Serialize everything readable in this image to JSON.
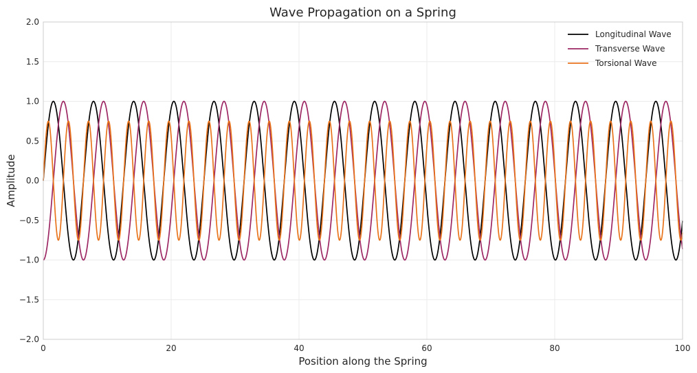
{
  "chart_data": {
    "type": "line",
    "title": "Wave Propagation on a Spring",
    "xlabel": "Position along the Spring",
    "ylabel": "Amplitude",
    "xlim": [
      0,
      100
    ],
    "ylim": [
      -2.0,
      2.0
    ],
    "xticks": [
      0,
      20,
      40,
      60,
      80,
      100
    ],
    "xtick_labels": [
      "0",
      "20",
      "40",
      "60",
      "80",
      "100"
    ],
    "yticks": [
      -2.0,
      -1.5,
      -1.0,
      -0.5,
      0.0,
      0.5,
      1.0,
      1.5,
      2.0
    ],
    "ytick_labels": [
      "−2.0",
      "−1.5",
      "−1.0",
      "−0.5",
      "0.0",
      "0.5",
      "1.0",
      "1.5",
      "2.0"
    ],
    "grid": true,
    "legend_position": "top-right",
    "series": [
      {
        "name": "Longitudinal Wave",
        "color": "#000000",
        "function": "sin(x)",
        "x_range": [
          0,
          100
        ],
        "amplitude": 1.0,
        "period": 6.283
      },
      {
        "name": "Transverse Wave",
        "color": "#9c2763",
        "function": "-cos(x)",
        "x_range": [
          0,
          100
        ],
        "amplitude": 1.0,
        "period": 6.283
      },
      {
        "name": "Torsional Wave",
        "color": "#e8731b",
        "function": "0.75*sin(2x)",
        "x_range": [
          0,
          100
        ],
        "amplitude": 0.75,
        "period": 3.1416
      }
    ]
  }
}
